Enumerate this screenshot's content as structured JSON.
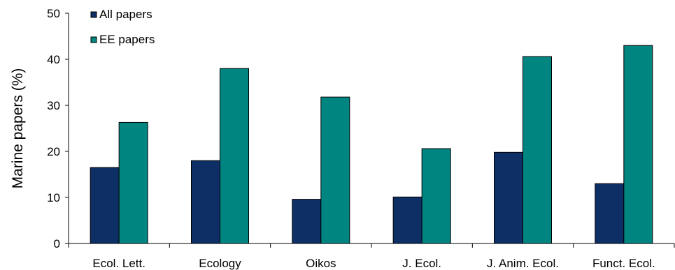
{
  "chart_data": {
    "type": "bar",
    "categories": [
      "Ecol. Lett.",
      "Ecology",
      "Oikos",
      "J. Ecol.",
      "J. Anim. Ecol.",
      "Funct. Ecol."
    ],
    "series": [
      {
        "name": "All papers",
        "color": "#0d2f66",
        "values": [
          16.5,
          18.0,
          9.6,
          10.1,
          19.8,
          13.0
        ]
      },
      {
        "name": "EE papers",
        "color": "#008581",
        "values": [
          26.3,
          38.0,
          31.8,
          20.6,
          40.6,
          43.0
        ]
      }
    ],
    "title": "",
    "xlabel": "",
    "ylabel": "Marine papers (%)",
    "ylim": [
      0,
      50
    ],
    "yticks": [
      "0",
      "10",
      "20",
      "30",
      "40",
      "50"
    ],
    "grid": false,
    "legend": "top-left"
  }
}
